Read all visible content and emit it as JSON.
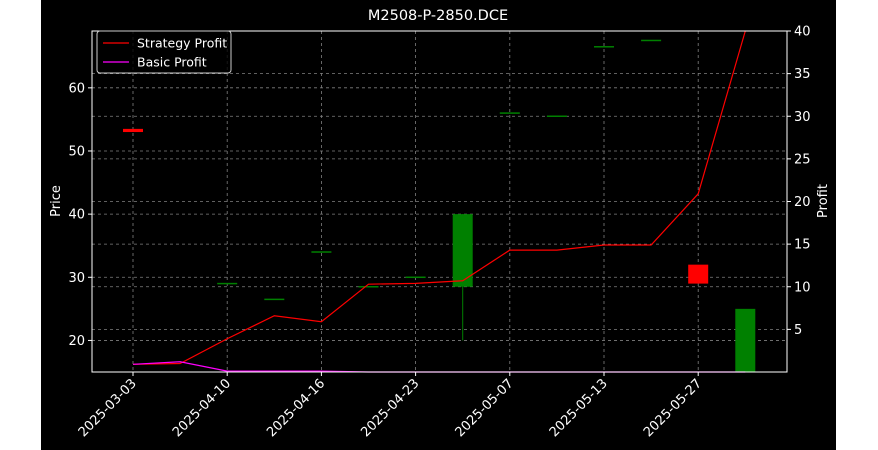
{
  "chart_data": {
    "type": "candlestick",
    "title": "M2508-P-2850.DCE",
    "left_axis": {
      "label": "Price",
      "ylim": [
        15,
        69
      ],
      "ticks": [
        20,
        30,
        40,
        50,
        60
      ]
    },
    "right_axis": {
      "label": "Profit",
      "ylim": [
        0,
        40
      ],
      "ticks": [
        5,
        10,
        15,
        20,
        25,
        30,
        35,
        40
      ]
    },
    "x_tick_labels": [
      "2025-03-03",
      "2025-04-10",
      "2025-04-16",
      "2025-04-23",
      "2025-05-07",
      "2025-05-13",
      "2025-05-27"
    ],
    "x_tick_positions": [
      0,
      2,
      4,
      6,
      8,
      10,
      12
    ],
    "grid": true,
    "legend_position": "upper-left",
    "colors": {
      "up": "#008000",
      "down": "#ff0000",
      "strategy": "#ff0000",
      "basic": "#ff00ff",
      "background": "#000000",
      "grid": "#808080"
    },
    "candles": [
      {
        "i": 0,
        "open": 53.5,
        "high": 53.5,
        "low": 53.0,
        "close": 53.0
      },
      {
        "i": 2,
        "open": 29.0,
        "high": 29.0,
        "low": 29.0,
        "close": 29.0
      },
      {
        "i": 3,
        "open": 26.5,
        "high": 26.5,
        "low": 26.5,
        "close": 26.5
      },
      {
        "i": 4,
        "open": 34.0,
        "high": 34.0,
        "low": 34.0,
        "close": 34.0
      },
      {
        "i": 5,
        "open": 28.5,
        "high": 28.5,
        "low": 28.5,
        "close": 28.5
      },
      {
        "i": 6,
        "open": 30.0,
        "high": 30.0,
        "low": 30.0,
        "close": 30.0
      },
      {
        "i": 7,
        "open": 28.5,
        "high": 40.0,
        "low": 20.0,
        "close": 40.0
      },
      {
        "i": 8,
        "open": 56.0,
        "high": 56.0,
        "low": 56.0,
        "close": 56.0
      },
      {
        "i": 9,
        "open": 55.5,
        "high": 55.5,
        "low": 55.5,
        "close": 55.5
      },
      {
        "i": 10,
        "open": 66.5,
        "high": 66.5,
        "low": 66.5,
        "close": 66.5
      },
      {
        "i": 11,
        "open": 67.5,
        "high": 67.5,
        "low": 67.5,
        "close": 67.5
      },
      {
        "i": 12,
        "open": 32.0,
        "high": 32.0,
        "low": 29.0,
        "close": 29.0
      },
      {
        "i": 13,
        "open": 15.0,
        "high": 25.0,
        "low": 15.0,
        "close": 25.0
      }
    ],
    "series": [
      {
        "name": "Strategy Profit",
        "axis": "right",
        "x": [
          0,
          1,
          2,
          3,
          4,
          5,
          6,
          7,
          8,
          9,
          10,
          11,
          12,
          13
        ],
        "values": [
          0.9,
          1.0,
          3.9,
          6.6,
          5.9,
          10.3,
          10.4,
          10.7,
          14.3,
          14.3,
          14.9,
          14.9,
          20.9,
          40.0
        ]
      },
      {
        "name": "Basic Profit",
        "axis": "right",
        "x": [
          0,
          1,
          2,
          3,
          4,
          5,
          6,
          7,
          8,
          9,
          10,
          11,
          12,
          13
        ],
        "values": [
          0.9,
          1.2,
          0.1,
          0.1,
          0.1,
          0.0,
          0.0,
          0.0,
          0.0,
          0.0,
          0.0,
          0.0,
          0.0,
          0.0
        ]
      }
    ]
  }
}
